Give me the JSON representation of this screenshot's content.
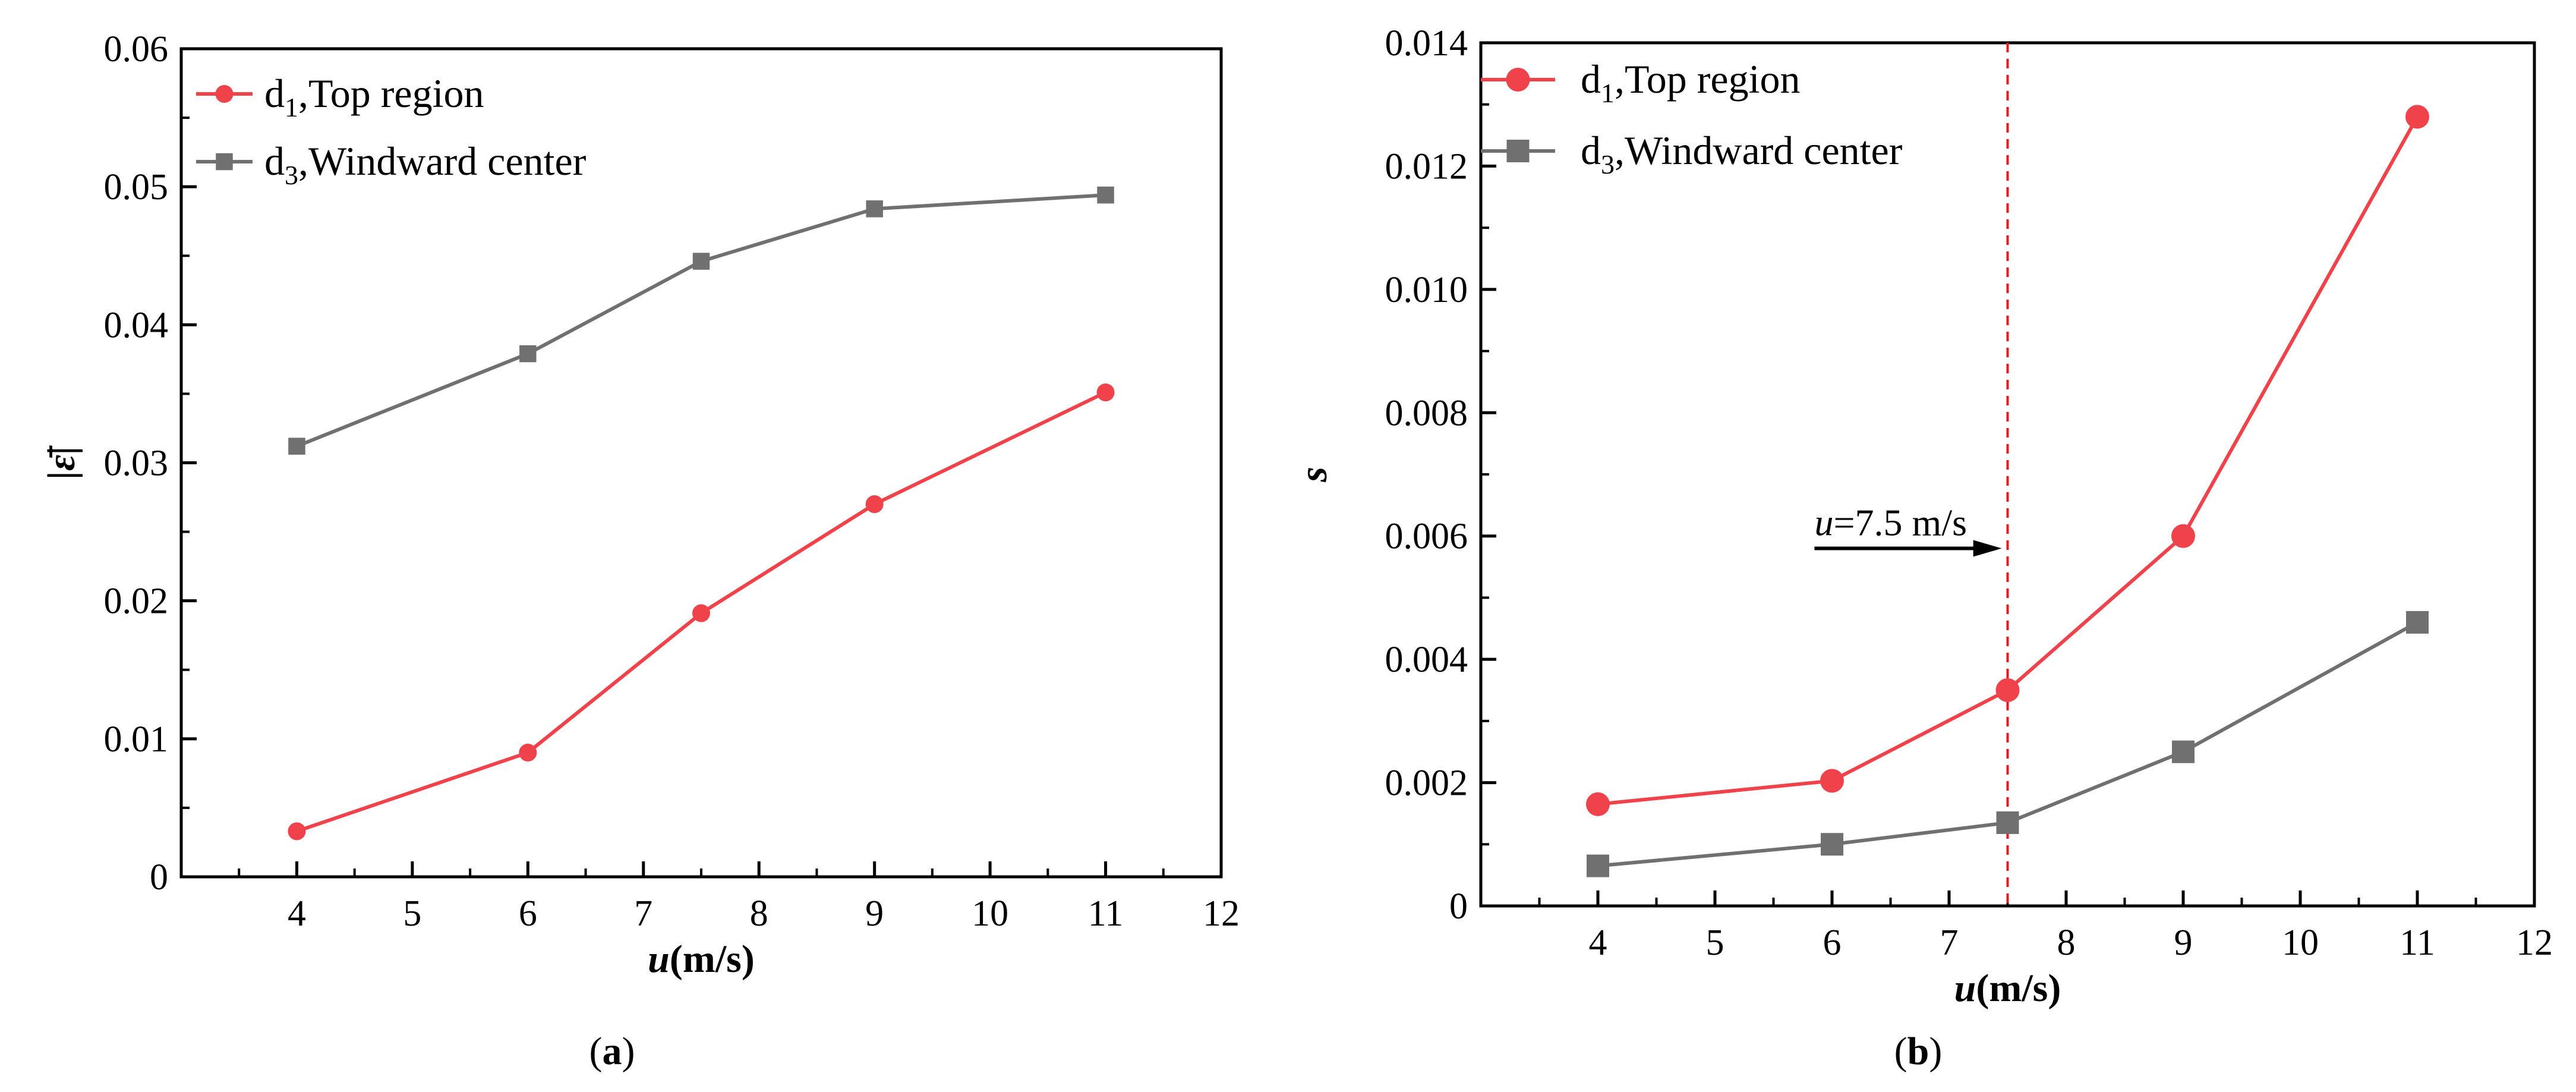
{
  "chart_data": [
    {
      "type": "line",
      "panel_label": "(a)",
      "x": [
        4,
        6,
        7.5,
        9,
        11
      ],
      "xlim": [
        3,
        12
      ],
      "ylim": [
        0,
        0.06
      ],
      "xticks": [
        "4",
        "5",
        "6",
        "7",
        "8",
        "9",
        "10",
        "11",
        "12"
      ],
      "yticks": [
        "0",
        "0.01",
        "0.02",
        "0.03",
        "0.04",
        "0.05",
        "0.06"
      ],
      "xlabel": {
        "var": "u",
        "unit": "(m/s)"
      },
      "ylabel": "|ε̄|",
      "legend_position": "top-left",
      "series": [
        {
          "name": "d1,Top region",
          "label_base": "d",
          "label_sub": "1",
          "label_rest": ",Top region",
          "color": "#f0424a",
          "marker": "circle",
          "values": [
            0.0033,
            0.009,
            0.0191,
            0.027,
            0.0351
          ]
        },
        {
          "name": "d3,Windward center",
          "label_base": "d",
          "label_sub": "3",
          "label_rest": ",Windward center",
          "color": "#707070",
          "marker": "square",
          "values": [
            0.0312,
            0.0379,
            0.0446,
            0.0484,
            0.0494
          ]
        }
      ]
    },
    {
      "type": "line",
      "panel_label": "(b)",
      "x": [
        4,
        6,
        7.5,
        9,
        11
      ],
      "xlim": [
        3,
        12
      ],
      "ylim": [
        0,
        0.014
      ],
      "xticks": [
        "4",
        "5",
        "6",
        "7",
        "8",
        "9",
        "10",
        "11",
        "12"
      ],
      "yticks": [
        "0",
        "0.002",
        "0.004",
        "0.006",
        "0.008",
        "0.010",
        "0.012",
        "0.014"
      ],
      "xlabel": {
        "var": "u",
        "unit": "(m/s)"
      },
      "ylabel": "s",
      "legend_position": "top-left",
      "reference_line": {
        "x": 7.5,
        "color": "#e8161e"
      },
      "annotation": {
        "var": "u",
        "text": "=7.5 m/s",
        "arrow": "right"
      },
      "series": [
        {
          "name": "d1,Top region",
          "label_base": "d",
          "label_sub": "1",
          "label_rest": ",Top region",
          "color": "#f0424a",
          "marker": "circle",
          "values": [
            0.00165,
            0.00203,
            0.0035,
            0.006,
            0.0128
          ]
        },
        {
          "name": "d3,Windward center",
          "label_base": "d",
          "label_sub": "3",
          "label_rest": ",Windward center",
          "color": "#707070",
          "marker": "square",
          "values": [
            0.00065,
            0.001,
            0.00135,
            0.0025,
            0.0046
          ]
        }
      ]
    }
  ]
}
